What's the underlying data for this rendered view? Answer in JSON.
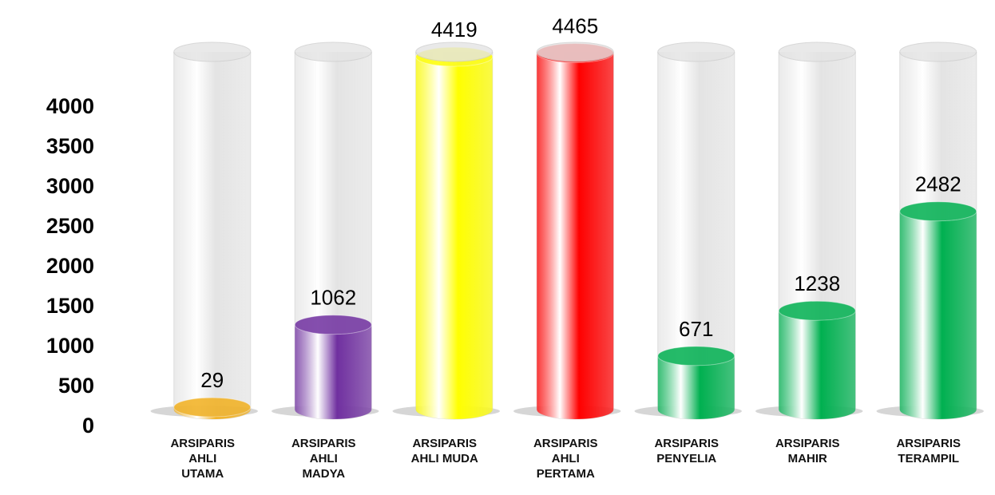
{
  "chart_data": {
    "type": "cylinder-bar",
    "categories": [
      "ARSIPARIS\nAHLI\nUTAMA",
      "ARSIPARIS\nAHLI\nMADYA",
      "ARSIPARIS\nAHLI MUDA",
      "ARSIPARIS\nAHLI\nPERTAMA",
      "ARSIPARIS\nPENYELIA",
      "ARSIPARIS\nMAHIR",
      "ARSIPARIS\nTERAMPIL"
    ],
    "values": [
      29,
      1062,
      4419,
      4465,
      671,
      1238,
      2482
    ],
    "colors": [
      "#f2b01e",
      "#7030a0",
      "#ffff00",
      "#ff0000",
      "#00b050",
      "#00b050",
      "#00b050"
    ],
    "ylim": [
      0,
      4700
    ],
    "yticks": [
      0,
      500,
      1000,
      1500,
      2000,
      2500,
      3000,
      3500,
      4000
    ],
    "grid": false
  }
}
